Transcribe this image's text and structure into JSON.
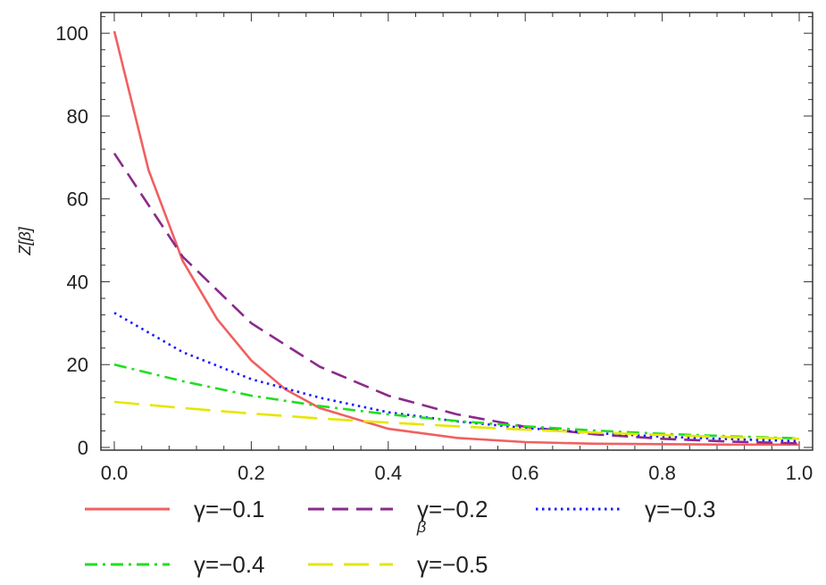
{
  "chart_data": {
    "type": "line",
    "title": "",
    "xlabel": "β",
    "ylabel": "Z[β]",
    "xlim": [
      0.0,
      1.0
    ],
    "ylim": [
      0,
      105
    ],
    "x_ticks": [
      "0.0",
      "0.2",
      "0.4",
      "0.6",
      "0.8",
      "1.0"
    ],
    "y_ticks": [
      "0",
      "20",
      "40",
      "60",
      "80",
      "100"
    ],
    "grid": false,
    "legend_position": "bottom",
    "series": [
      {
        "name": "γ=−0.1",
        "color": "#f06060",
        "dash": "solid",
        "x": [
          0.0,
          0.05,
          0.1,
          0.15,
          0.2,
          0.25,
          0.3,
          0.4,
          0.5,
          0.6,
          0.7,
          0.8,
          0.9,
          1.0
        ],
        "y": [
          100.5,
          67,
          45,
          31,
          21,
          14,
          9.5,
          4.5,
          2.3,
          1.3,
          0.9,
          0.8,
          0.7,
          0.7
        ]
      },
      {
        "name": "γ=−0.2",
        "color": "#8b2a8b",
        "dash": "dashed",
        "x": [
          0.0,
          0.1,
          0.2,
          0.3,
          0.4,
          0.5,
          0.6,
          0.7,
          0.8,
          0.9,
          1.0
        ],
        "y": [
          71,
          46,
          30,
          19.5,
          12.5,
          8,
          5,
          3.2,
          2.1,
          1.4,
          1.0
        ]
      },
      {
        "name": "γ=−0.3",
        "color": "#1a1aff",
        "dash": "dotted",
        "x": [
          0.0,
          0.1,
          0.2,
          0.3,
          0.4,
          0.5,
          0.6,
          0.7,
          0.8,
          0.9,
          1.0
        ],
        "y": [
          32.5,
          23,
          16.5,
          12,
          8.5,
          6.3,
          4.7,
          3.5,
          2.6,
          2.0,
          1.5
        ]
      },
      {
        "name": "γ=−0.4",
        "color": "#22dd22",
        "dash": "dashdot",
        "x": [
          0.0,
          0.1,
          0.2,
          0.3,
          0.4,
          0.5,
          0.6,
          0.7,
          0.8,
          0.9,
          1.0
        ],
        "y": [
          20,
          16,
          12.5,
          10,
          8,
          6.4,
          5.1,
          4.1,
          3.3,
          2.7,
          2.2
        ]
      },
      {
        "name": "γ=−0.5",
        "color": "#e6e600",
        "dash": "longdash",
        "x": [
          0.0,
          0.1,
          0.2,
          0.3,
          0.4,
          0.5,
          0.6,
          0.7,
          0.8,
          0.9,
          1.0
        ],
        "y": [
          11,
          9.5,
          8.2,
          7,
          6,
          5.1,
          4.3,
          3.6,
          3.0,
          2.5,
          2.1
        ]
      }
    ]
  }
}
